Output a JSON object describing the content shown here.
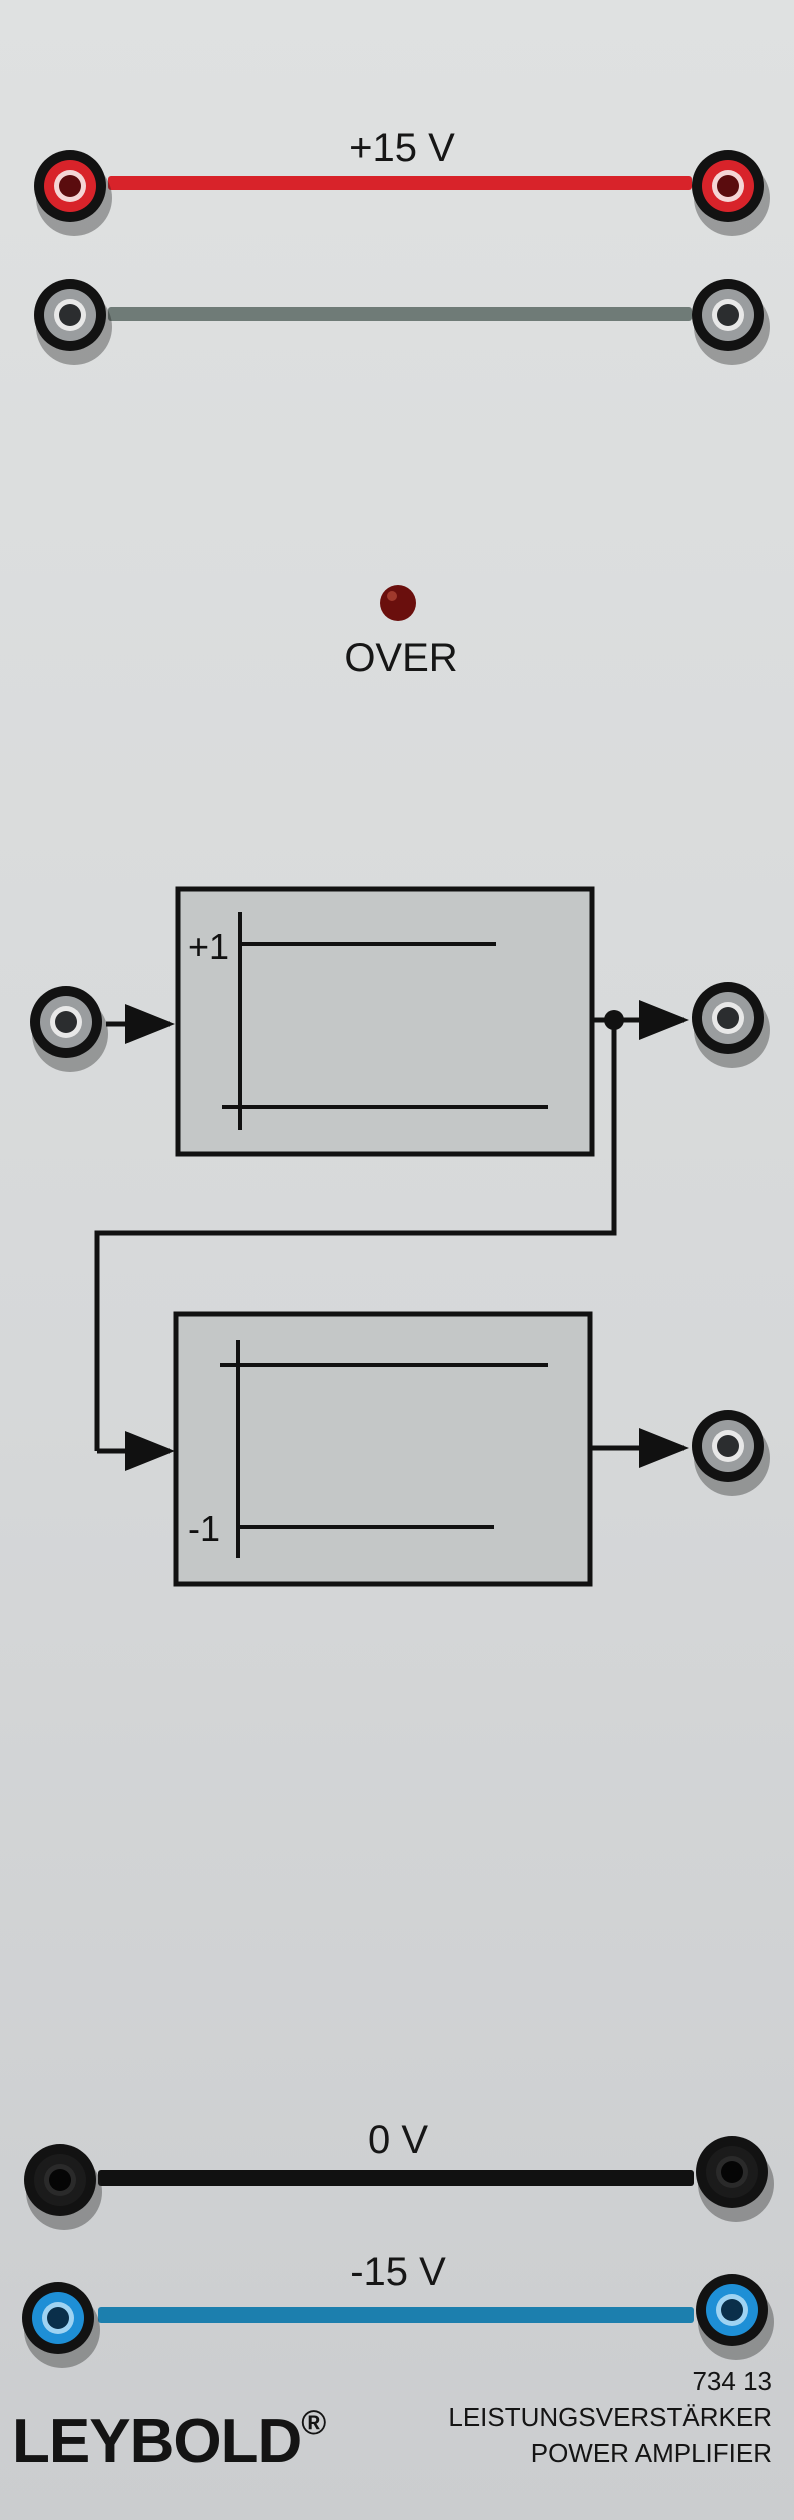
{
  "rails": [
    {
      "id": "pos15",
      "label": "+15 V",
      "color": "#d8232a",
      "jack_ring": "#d8232a",
      "jack_hole": "#5a0c0e"
    },
    {
      "id": "gnd_top",
      "label": "",
      "color": "#6f7b77",
      "jack_ring": "#9a9d9f",
      "jack_hole": "#2b2d2f"
    },
    {
      "id": "zero",
      "label": "0 V",
      "color": "#111111",
      "jack_ring": "#1b1b1b",
      "jack_hole": "#050505"
    },
    {
      "id": "neg15",
      "label": "-15 V",
      "color": "#1c7fae",
      "jack_ring": "#1e8fd6",
      "jack_hole": "#0a2f4a"
    }
  ],
  "indicator": {
    "label": "OVER",
    "led_color": "#6a0f0d"
  },
  "amplifiers": [
    {
      "gain_label": "+1"
    },
    {
      "gain_label": "-1"
    }
  ],
  "colors": {
    "box_fill": "#c4c7c7",
    "line": "#111111",
    "panel": "#dadcdc"
  },
  "brand": {
    "name": "LEYBOLD",
    "mark": "®"
  },
  "product": {
    "number": "734 13",
    "name_de": "LEISTUNGSVERSTÄRKER",
    "name_en": "POWER AMPLIFIER"
  }
}
